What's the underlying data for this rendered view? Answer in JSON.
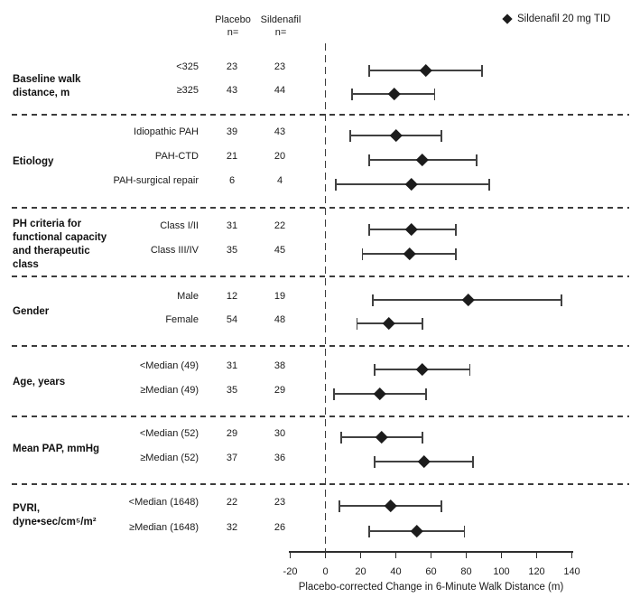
{
  "header": {
    "placebo_label": "Placebo",
    "placebo_n": "n=",
    "sildenafil_label": "Sildenafil",
    "sildenafil_n": "n="
  },
  "legend": {
    "marker": "diamond-icon",
    "label": "Sildenafil 20 mg TID"
  },
  "axis": {
    "title": "Placebo-corrected Change in 6-Minute Walk Distance (m)",
    "ticks": [
      -20,
      0,
      20,
      40,
      60,
      80,
      100,
      120,
      140
    ]
  },
  "colors": {
    "marker": "#1c1c1c",
    "line": "#414141",
    "dash": "#3c3c3c"
  },
  "chart_data": {
    "type": "forest",
    "title": "",
    "xlabel": "Placebo-corrected Change in 6-Minute Walk Distance (m)",
    "x_range": [
      -20,
      140
    ],
    "x_ticks": [
      -20,
      0,
      20,
      40,
      60,
      80,
      100,
      120,
      140
    ],
    "reference_line": 0,
    "series_label": "Sildenafil 20 mg TID",
    "columns": [
      "Placebo n=",
      "Sildenafil n="
    ],
    "groups": [
      {
        "label": "Baseline walk\ndistance, m",
        "rows": [
          {
            "subgroup": "<325",
            "placebo_n": 23,
            "sildenafil_n": 23,
            "estimate": 57,
            "ci_low": 25,
            "ci_high": 89
          },
          {
            "subgroup": "≥325",
            "placebo_n": 43,
            "sildenafil_n": 44,
            "estimate": 39,
            "ci_low": 15,
            "ci_high": 62
          }
        ]
      },
      {
        "label": "Etiology",
        "rows": [
          {
            "subgroup": "Idiopathic PAH",
            "placebo_n": 39,
            "sildenafil_n": 43,
            "estimate": 40,
            "ci_low": 14,
            "ci_high": 66
          },
          {
            "subgroup": "PAH-CTD",
            "placebo_n": 21,
            "sildenafil_n": 20,
            "estimate": 55,
            "ci_low": 25,
            "ci_high": 86
          },
          {
            "subgroup": "PAH-surgical repair",
            "placebo_n": 6,
            "sildenafil_n": 4,
            "estimate": 49,
            "ci_low": 6,
            "ci_high": 93
          }
        ]
      },
      {
        "label": "PH criteria for\nfunctional capacity\nand therapeutic\nclass",
        "rows": [
          {
            "subgroup": "Class I/II",
            "placebo_n": 31,
            "sildenafil_n": 22,
            "estimate": 49,
            "ci_low": 25,
            "ci_high": 74
          },
          {
            "subgroup": "Class III/IV",
            "placebo_n": 35,
            "sildenafil_n": 45,
            "estimate": 48,
            "ci_low": 21,
            "ci_high": 74
          }
        ]
      },
      {
        "label": "Gender",
        "rows": [
          {
            "subgroup": "Male",
            "placebo_n": 12,
            "sildenafil_n": 19,
            "estimate": 81,
            "ci_low": 27,
            "ci_high": 134
          },
          {
            "subgroup": "Female",
            "placebo_n": 54,
            "sildenafil_n": 48,
            "estimate": 36,
            "ci_low": 18,
            "ci_high": 55
          }
        ]
      },
      {
        "label": "Age, years",
        "rows": [
          {
            "subgroup": "<Median (49)",
            "placebo_n": 31,
            "sildenafil_n": 38,
            "estimate": 55,
            "ci_low": 28,
            "ci_high": 82
          },
          {
            "subgroup": "≥Median (49)",
            "placebo_n": 35,
            "sildenafil_n": 29,
            "estimate": 31,
            "ci_low": 5,
            "ci_high": 57
          }
        ]
      },
      {
        "label": "Mean PAP, mmHg",
        "rows": [
          {
            "subgroup": "<Median (52)",
            "placebo_n": 29,
            "sildenafil_n": 30,
            "estimate": 32,
            "ci_low": 9,
            "ci_high": 55
          },
          {
            "subgroup": "≥Median (52)",
            "placebo_n": 37,
            "sildenafil_n": 36,
            "estimate": 56,
            "ci_low": 28,
            "ci_high": 84
          }
        ]
      },
      {
        "label": "PVRI,\ndyne•sec/cm⁵/m²",
        "rows": [
          {
            "subgroup": "<Median (1648)",
            "placebo_n": 22,
            "sildenafil_n": 23,
            "estimate": 37,
            "ci_low": 8,
            "ci_high": 66
          },
          {
            "subgroup": "≥Median (1648)",
            "placebo_n": 32,
            "sildenafil_n": 26,
            "estimate": 52,
            "ci_low": 25,
            "ci_high": 79
          }
        ]
      }
    ]
  }
}
